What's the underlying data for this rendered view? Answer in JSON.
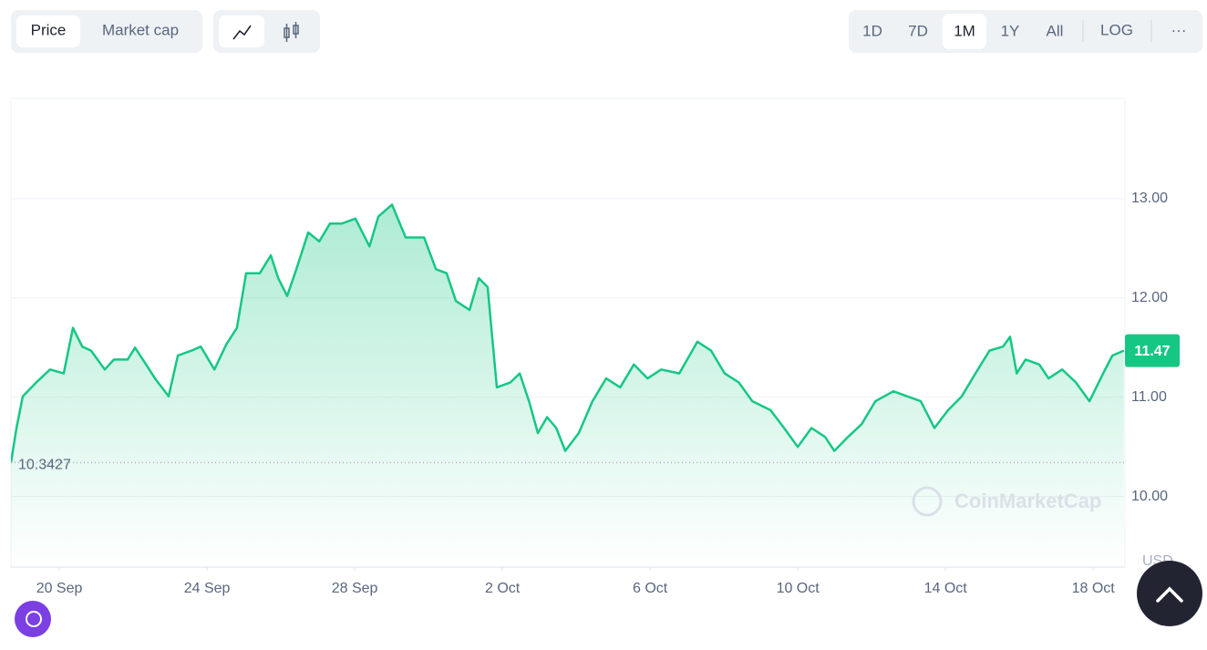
{
  "toolbar": {
    "metric_tabs": [
      "Price",
      "Market cap"
    ],
    "ranges": [
      "1D",
      "7D",
      "1M",
      "1Y",
      "All"
    ],
    "scale": "LOG",
    "more": "···"
  },
  "chart_data": {
    "type": "area",
    "x": [
      -1.31,
      -1.16,
      -0.99,
      -0.62,
      -0.25,
      0.12,
      0.37,
      0.62,
      0.86,
      1.23,
      1.48,
      1.85,
      2.05,
      2.35,
      2.59,
      2.96,
      3.21,
      3.58,
      3.83,
      4.2,
      4.52,
      4.81,
      5.06,
      5.43,
      5.73,
      5.93,
      6.17,
      6.42,
      6.74,
      7.04,
      7.33,
      7.65,
      8.02,
      8.4,
      8.64,
      9.01,
      9.38,
      9.88,
      10.2,
      10.49,
      10.74,
      11.11,
      11.36,
      11.6,
      11.85,
      12.22,
      12.47,
      12.72,
      12.96,
      13.21,
      13.46,
      13.7,
      14.07,
      14.44,
      14.81,
      15.19,
      15.56,
      15.93,
      16.3,
      16.79,
      17.28,
      17.65,
      18.02,
      18.4,
      18.77,
      19.26,
      19.63,
      20.0,
      20.37,
      20.74,
      20.99,
      21.36,
      21.73,
      22.1,
      22.59,
      22.96,
      23.33,
      23.7,
      24.07,
      24.44,
      24.81,
      25.19,
      25.56,
      25.75,
      25.93,
      26.17,
      26.54,
      26.79,
      27.16,
      27.53,
      27.9,
      28.27,
      28.52,
      28.83
    ],
    "series": [
      {
        "name": "Price",
        "color": "#16c784",
        "values": [
          10.34,
          10.69,
          11.01,
          11.15,
          11.28,
          11.24,
          11.7,
          11.51,
          11.47,
          11.28,
          11.38,
          11.38,
          11.5,
          11.33,
          11.19,
          11.01,
          11.42,
          11.47,
          11.51,
          11.28,
          11.53,
          11.7,
          12.25,
          12.25,
          12.43,
          12.2,
          12.02,
          12.29,
          12.66,
          12.57,
          12.75,
          12.75,
          12.8,
          12.52,
          12.82,
          12.94,
          12.61,
          12.61,
          12.29,
          12.25,
          11.97,
          11.88,
          12.2,
          12.11,
          11.1,
          11.15,
          11.24,
          10.96,
          10.64,
          10.8,
          10.69,
          10.46,
          10.64,
          10.96,
          11.19,
          11.1,
          11.33,
          11.19,
          11.28,
          11.24,
          11.56,
          11.47,
          11.24,
          11.15,
          10.96,
          10.87,
          10.69,
          10.5,
          10.69,
          10.6,
          10.46,
          10.6,
          10.73,
          10.96,
          11.06,
          11.01,
          10.96,
          10.69,
          10.87,
          11.01,
          11.24,
          11.47,
          11.51,
          11.61,
          11.24,
          11.38,
          11.33,
          11.19,
          11.28,
          11.15,
          10.96,
          11.24,
          11.42,
          11.47
        ]
      }
    ],
    "xlim": [
      -1.31,
      28.86
    ],
    "xticks": [
      {
        "value": 0,
        "label": "20 Sep"
      },
      {
        "value": 4,
        "label": "24 Sep"
      },
      {
        "value": 8,
        "label": "28 Sep"
      },
      {
        "value": 12,
        "label": "2 Oct"
      },
      {
        "value": 16,
        "label": "6 Oct"
      },
      {
        "value": 20,
        "label": "10 Oct"
      },
      {
        "value": 24,
        "label": "14 Oct"
      },
      {
        "value": 28,
        "label": "18 Oct"
      }
    ],
    "ylim": [
      9.29,
      14.01
    ],
    "yticks": [
      {
        "value": 10,
        "label": "10.00"
      },
      {
        "value": 11,
        "label": "11.00"
      },
      {
        "value": 12,
        "label": "12.00"
      },
      {
        "value": 13,
        "label": "13.00"
      }
    ],
    "grid": true,
    "reference_price": 10.3427,
    "current_price": 11.47,
    "currency": "USD",
    "watermark": "CoinMarketCap"
  }
}
